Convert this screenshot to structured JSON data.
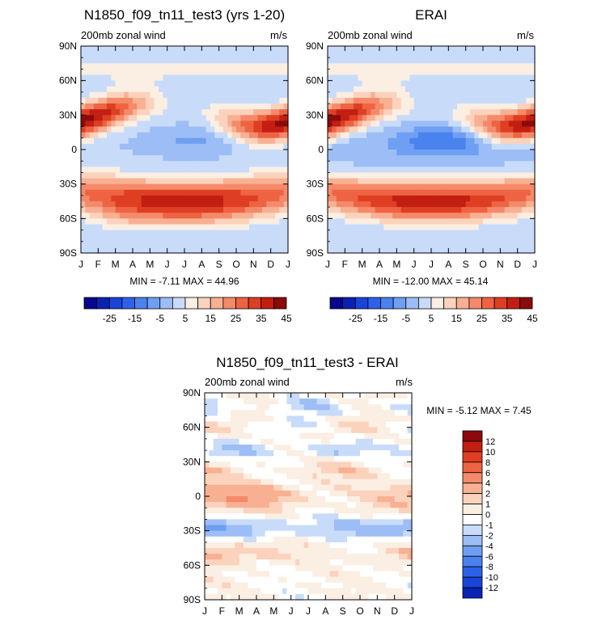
{
  "chart_data": [
    {
      "type": "heatmap",
      "id": "model",
      "title": "N1850_f09_tn11_test3 (yrs 1-20)",
      "subtitle_left": "200mb zonal wind",
      "subtitle_right": "m/s",
      "x_ticks": [
        "J",
        "F",
        "M",
        "A",
        "M",
        "J",
        "J",
        "A",
        "S",
        "O",
        "N",
        "D",
        "J"
      ],
      "y_ticks": [
        "90N",
        "60N",
        "30N",
        "0",
        "30S",
        "60S",
        "90S"
      ],
      "min_max": "MIN =  -7.11 MAX =  44.96",
      "colorbar": {
        "labels": [
          "-25",
          "-15",
          "-5",
          "5",
          "15",
          "25",
          "35",
          "45"
        ],
        "levels": [
          -30,
          -25,
          -20,
          -15,
          -10,
          -5,
          0,
          5,
          10,
          15,
          20,
          25,
          30,
          35,
          40,
          45
        ],
        "colors": [
          "#08088c",
          "#0a22b4",
          "#1a44d8",
          "#2d62e8",
          "#4a82ee",
          "#6e9ff2",
          "#9dbdf6",
          "#c8dcfa",
          "#fbeee2",
          "#fbd2bc",
          "#f8b092",
          "#f48a6a",
          "#ee6342",
          "#de3e22",
          "#c31e12",
          "#8a0b0b"
        ]
      }
    },
    {
      "type": "heatmap",
      "id": "obs",
      "title": "ERAI",
      "subtitle_left": "200mb zonal wind",
      "subtitle_right": "m/s",
      "x_ticks": [
        "J",
        "F",
        "M",
        "A",
        "M",
        "J",
        "J",
        "A",
        "S",
        "O",
        "N",
        "D",
        "J"
      ],
      "y_ticks": [
        "90N",
        "60N",
        "30N",
        "0",
        "30S",
        "60S",
        "90S"
      ],
      "min_max": "MIN = -12.00 MAX =  45.14",
      "colorbar": {
        "labels": [
          "-25",
          "-15",
          "-5",
          "5",
          "15",
          "25",
          "35",
          "45"
        ],
        "levels": [
          -30,
          -25,
          -20,
          -15,
          -10,
          -5,
          0,
          5,
          10,
          15,
          20,
          25,
          30,
          35,
          40,
          45
        ],
        "colors": [
          "#08088c",
          "#0a22b4",
          "#1a44d8",
          "#2d62e8",
          "#4a82ee",
          "#6e9ff2",
          "#9dbdf6",
          "#c8dcfa",
          "#fbeee2",
          "#fbd2bc",
          "#f8b092",
          "#f48a6a",
          "#ee6342",
          "#de3e22",
          "#c31e12",
          "#8a0b0b"
        ]
      }
    },
    {
      "type": "heatmap",
      "id": "diff",
      "title": "N1850_f09_tn11_test3 - ERAI",
      "subtitle_left": "200mb zonal wind",
      "subtitle_right": "m/s",
      "x_ticks": [
        "J",
        "F",
        "M",
        "A",
        "M",
        "J",
        "J",
        "A",
        "S",
        "O",
        "N",
        "D",
        "J"
      ],
      "y_ticks": [
        "90N",
        "60N",
        "30N",
        "0",
        "30S",
        "60S",
        "90S"
      ],
      "min_max": "MIN =  -5.12 MAX =   7.45",
      "colorbar": {
        "labels": [
          "12",
          "10",
          "8",
          "6",
          "4",
          "2",
          "1",
          "0",
          "-1",
          "-2",
          "-4",
          "-6",
          "-8",
          "-10",
          "-12"
        ],
        "levels": [
          -12,
          -10,
          -8,
          -6,
          -4,
          -2,
          -1,
          0,
          1,
          2,
          4,
          6,
          8,
          10,
          12
        ],
        "colors": [
          "#8a0b0b",
          "#c31e12",
          "#de3e22",
          "#ee6342",
          "#f48a6a",
          "#f8b092",
          "#fbd2bc",
          "#fbeee2",
          "#ffffff",
          "#c8dcfa",
          "#9dbdf6",
          "#6e9ff2",
          "#4a82ee",
          "#2d62e8",
          "#1a44d8",
          "#0a22b4"
        ]
      }
    }
  ]
}
